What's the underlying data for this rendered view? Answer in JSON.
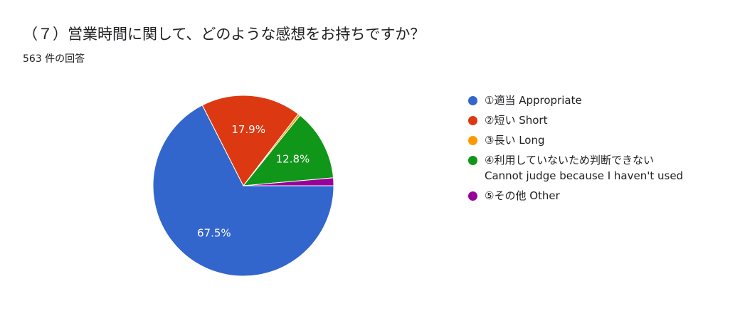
{
  "chart_data": {
    "type": "pie",
    "title": "（７）営業時間に関して、どのような感想をお持ちですか？",
    "subtitle": "563 件の回答",
    "categories": [
      "①適当 Appropriate",
      "②短い Short",
      "③長い Long",
      "④利用していないため判断できない\nCannot judge because I haven't used",
      "⑤その他 Other"
    ],
    "values": [
      67.5,
      17.9,
      0.4,
      12.8,
      1.4
    ],
    "value_labels": [
      "67.5%",
      "17.9%",
      null,
      "12.8%",
      null
    ],
    "colors": [
      "#3366cc",
      "#dc3912",
      "#ff9900",
      "#109618",
      "#990099"
    ]
  }
}
